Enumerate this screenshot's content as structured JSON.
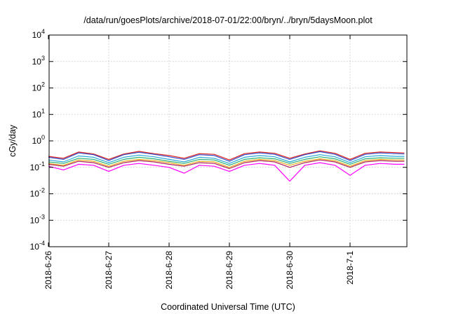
{
  "chart_data": {
    "type": "line",
    "title": "/data/run/goesPlots/archive/2018-07-01/22:00/bryn/../bryn/5daysMoon.plot",
    "xlabel": "Coordinated Universal Time (UTC)",
    "ylabel": "cGy/day",
    "yscale": "log",
    "ylim": [
      0.0001,
      10000
    ],
    "y_ticks": [
      {
        "base": "10",
        "exp": "-4"
      },
      {
        "base": "10",
        "exp": "-3"
      },
      {
        "base": "10",
        "exp": "-2"
      },
      {
        "base": "10",
        "exp": "-1"
      },
      {
        "base": "10",
        "exp": "0"
      },
      {
        "base": "10",
        "exp": "1"
      },
      {
        "base": "10",
        "exp": "2"
      },
      {
        "base": "10",
        "exp": "3"
      },
      {
        "base": "10",
        "exp": "4"
      }
    ],
    "x_ticks": [
      "2018-6-26",
      "2018-6-27",
      "2018-6-28",
      "2018-6-29",
      "2018-6-30",
      "2018-7-1"
    ],
    "xlim": [
      "2018-06-26 00:00",
      "2018-07-01 22:00"
    ],
    "grid": true,
    "x_days": [
      0,
      0.25,
      0.5,
      0.75,
      1,
      1.25,
      1.5,
      1.75,
      2,
      2.25,
      2.5,
      2.75,
      3,
      3.25,
      3.5,
      3.75,
      4,
      4.25,
      4.5,
      4.75,
      5,
      5.25,
      5.5,
      5.75,
      5.9
    ],
    "series": [
      {
        "color": "#e0231e",
        "values": [
          0.26,
          0.22,
          0.38,
          0.32,
          0.2,
          0.32,
          0.4,
          0.33,
          0.28,
          0.22,
          0.33,
          0.31,
          0.19,
          0.33,
          0.38,
          0.34,
          0.22,
          0.32,
          0.42,
          0.34,
          0.2,
          0.34,
          0.38,
          0.36,
          0.35
        ]
      },
      {
        "color": "#3050d0",
        "values": [
          0.24,
          0.2,
          0.35,
          0.3,
          0.18,
          0.3,
          0.37,
          0.31,
          0.25,
          0.2,
          0.3,
          0.28,
          0.17,
          0.3,
          0.35,
          0.31,
          0.2,
          0.3,
          0.39,
          0.31,
          0.18,
          0.31,
          0.35,
          0.33,
          0.32
        ]
      },
      {
        "color": "#2aa8d8",
        "values": [
          0.19,
          0.16,
          0.27,
          0.24,
          0.15,
          0.24,
          0.29,
          0.25,
          0.2,
          0.16,
          0.24,
          0.22,
          0.14,
          0.24,
          0.28,
          0.25,
          0.16,
          0.24,
          0.3,
          0.25,
          0.15,
          0.25,
          0.28,
          0.26,
          0.26
        ]
      },
      {
        "color": "#2ab07a",
        "values": [
          0.16,
          0.14,
          0.22,
          0.2,
          0.13,
          0.2,
          0.24,
          0.21,
          0.17,
          0.14,
          0.2,
          0.19,
          0.12,
          0.2,
          0.23,
          0.21,
          0.14,
          0.2,
          0.25,
          0.21,
          0.13,
          0.21,
          0.23,
          0.22,
          0.22
        ]
      },
      {
        "color": "#e8b020",
        "values": [
          0.14,
          0.12,
          0.19,
          0.17,
          0.11,
          0.17,
          0.2,
          0.18,
          0.15,
          0.12,
          0.17,
          0.16,
          0.1,
          0.17,
          0.2,
          0.18,
          0.12,
          0.17,
          0.21,
          0.18,
          0.11,
          0.18,
          0.2,
          0.19,
          0.19
        ]
      },
      {
        "color": "#b0205a",
        "values": [
          0.13,
          0.11,
          0.17,
          0.15,
          0.1,
          0.15,
          0.18,
          0.16,
          0.13,
          0.11,
          0.15,
          0.14,
          0.09,
          0.15,
          0.18,
          0.16,
          0.1,
          0.15,
          0.19,
          0.16,
          0.1,
          0.16,
          0.18,
          0.17,
          0.17
        ]
      },
      {
        "color": "#ff00ff",
        "values": [
          0.11,
          0.08,
          0.13,
          0.12,
          0.07,
          0.12,
          0.14,
          0.12,
          0.1,
          0.06,
          0.12,
          0.11,
          0.07,
          0.12,
          0.14,
          0.12,
          0.03,
          0.12,
          0.15,
          0.12,
          0.05,
          0.12,
          0.14,
          0.13,
          0.13
        ]
      }
    ]
  }
}
